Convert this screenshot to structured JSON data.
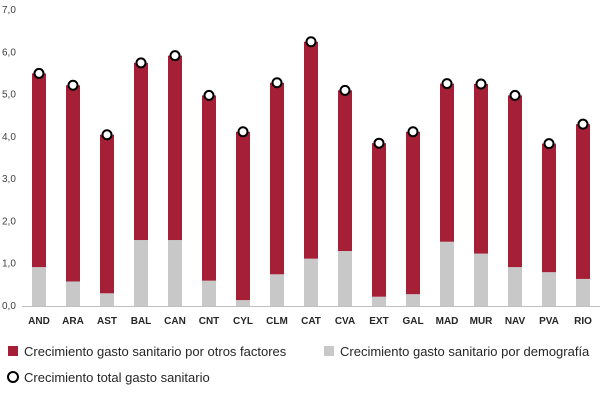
{
  "chart_data": {
    "type": "bar",
    "stacked": true,
    "categories": [
      "AND",
      "ARA",
      "AST",
      "BAL",
      "CAN",
      "CNT",
      "CYL",
      "CLM",
      "CAT",
      "CVA",
      "EXT",
      "GAL",
      "MAD",
      "MUR",
      "NAV",
      "PVA",
      "RIO"
    ],
    "series": [
      {
        "name": "Crecimiento gasto sanitario por demografía",
        "kind": "bar",
        "color": "#c8c8c8",
        "values": [
          0.92,
          0.58,
          0.3,
          1.56,
          1.56,
          0.6,
          0.14,
          0.75,
          1.12,
          1.3,
          0.22,
          0.28,
          1.52,
          1.24,
          0.92,
          0.8,
          0.64
        ]
      },
      {
        "name": "Crecimiento gasto sanitario por otros factores",
        "kind": "bar",
        "color": "#a51f36",
        "values": [
          4.58,
          4.64,
          3.75,
          4.19,
          4.36,
          4.38,
          3.98,
          4.53,
          5.13,
          3.8,
          3.63,
          3.84,
          3.74,
          4.01,
          4.06,
          3.04,
          3.66
        ]
      },
      {
        "name": "Crecimiento total gasto sanitario",
        "kind": "marker",
        "color": "#000000",
        "values": [
          5.5,
          5.22,
          4.05,
          5.75,
          5.92,
          4.98,
          4.12,
          5.28,
          6.25,
          5.1,
          3.85,
          4.12,
          5.26,
          5.25,
          4.98,
          3.84,
          4.3
        ]
      }
    ],
    "yticks": [
      "0,0",
      "1,0",
      "2,0",
      "3,0",
      "4,0",
      "5,0",
      "6,0",
      "7,0"
    ],
    "ylim": [
      0,
      7
    ],
    "grid": false,
    "legend_position": "bottom",
    "legend": [
      "Crecimiento gasto sanitario por otros factores",
      "Crecimiento gasto sanitario por demografía",
      "Crecimiento total gasto sanitario"
    ]
  }
}
